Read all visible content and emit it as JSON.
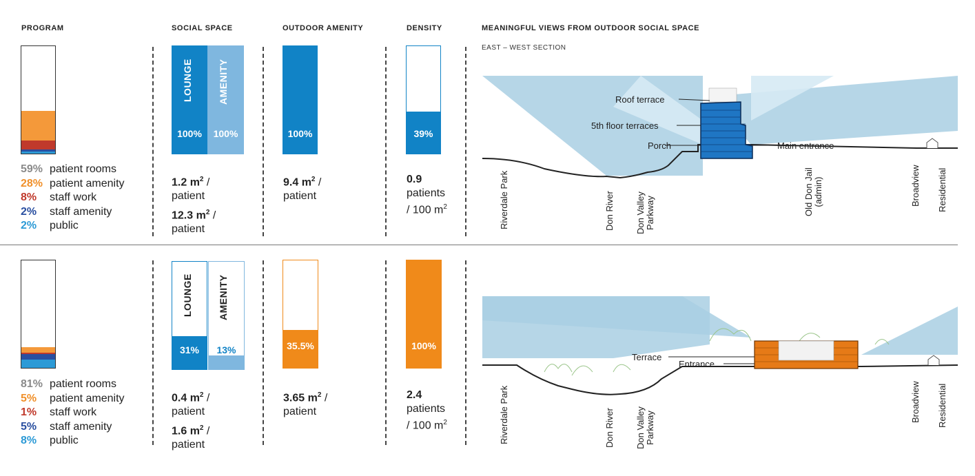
{
  "headers": {
    "program": "PROGRAM",
    "social_space": "SOCIAL SPACE",
    "outdoor_amenity": "OUTDOOR AMENITY",
    "density": "DENSITY",
    "views": "MEANINGFUL VIEWS FROM OUTDOOR SOCIAL SPACE",
    "section_sub": "EAST – WEST SECTION"
  },
  "colors": {
    "blue": "#1183c6",
    "light_blue": "#7fb7df",
    "orange": "#f08a1a",
    "light_orange": "#f4a33a",
    "red": "#c0392b",
    "dark_blue": "#2a4fa0",
    "cyan": "#2c9ad6",
    "sky": "#bcdbeb"
  },
  "top": {
    "program_list": [
      {
        "pct": "59%",
        "label": "patient rooms",
        "color": "#8a8a8a"
      },
      {
        "pct": "28%",
        "label": "patient amenity",
        "color": "#f0902a"
      },
      {
        "pct": "8%",
        "label": "staff work",
        "color": "#c0392b"
      },
      {
        "pct": "2%",
        "label": "staff amenity",
        "color": "#2a4fa0"
      },
      {
        "pct": "2%",
        "label": "public",
        "color": "#2c9ad6"
      }
    ],
    "program_fractions": {
      "patient_rooms": 0.59,
      "patient_amenity": 0.28,
      "staff_work": 0.08,
      "staff_amenity": 0.02,
      "public": 0.02
    },
    "social": {
      "lounge_label": "LOUNGE",
      "amenity_label": "AMENITY",
      "lounge_pct": "100%",
      "amenity_pct": "100%",
      "lounge_fill": 1.0,
      "amenity_fill": 1.0,
      "metric1_value": "1.2 m",
      "metric1_sup": "2",
      "metric1_unit": " /",
      "metric1_line2": "patient",
      "metric2_value": "12.3 m",
      "metric2_sup": "2",
      "metric2_unit": " /",
      "metric2_line2": "patient"
    },
    "outdoor": {
      "pct": "100%",
      "fill": 1.0,
      "value": "9.4 m",
      "sup": "2",
      "unit": " /",
      "line2": "patient"
    },
    "density": {
      "pct": "39%",
      "fill": 0.39,
      "value": "0.9",
      "line2": "patients",
      "line3": "/ 100 m",
      "sup": "2"
    },
    "section_labels": {
      "roof_terrace": "Roof terrace",
      "fifth_floor": "5th floor terraces",
      "porch": "Porch",
      "main_entrance": "Main entrance",
      "riverdale": "Riverdale Park",
      "don_river": "Don River",
      "dvp_1": "Don Valley",
      "dvp_2": "Parkway",
      "jail_1": "Old Don Jail",
      "jail_2": "(admin)",
      "broadview": "Broadview",
      "residential": "Residential"
    }
  },
  "bottom": {
    "program_list": [
      {
        "pct": "81%",
        "label": "patient rooms",
        "color": "#8a8a8a"
      },
      {
        "pct": "5%",
        "label": "patient amenity",
        "color": "#f0902a"
      },
      {
        "pct": "1%",
        "label": "staff work",
        "color": "#c0392b"
      },
      {
        "pct": "5%",
        "label": "staff amenity",
        "color": "#2a4fa0"
      },
      {
        "pct": "8%",
        "label": "public",
        "color": "#2c9ad6"
      }
    ],
    "program_fractions": {
      "patient_rooms": 0.81,
      "patient_amenity": 0.05,
      "staff_work": 0.01,
      "staff_amenity": 0.05,
      "public": 0.08
    },
    "social": {
      "lounge_label": "LOUNGE",
      "amenity_label": "AMENITY",
      "lounge_pct": "31%",
      "amenity_pct": "13%",
      "lounge_fill": 0.31,
      "amenity_fill": 0.13,
      "metric1_value": "0.4 m",
      "metric1_sup": "2",
      "metric1_unit": " /",
      "metric1_line2": "patient",
      "metric2_value": "1.6 m",
      "metric2_sup": "2",
      "metric2_unit": " /",
      "metric2_line2": "patient"
    },
    "outdoor": {
      "pct": "35.5%",
      "fill": 0.355,
      "value": "3.65 m",
      "sup": "2",
      "unit": " /",
      "line2": "patient"
    },
    "density": {
      "pct": "100%",
      "fill": 1.0,
      "value": "2.4",
      "line2": "patients",
      "line3": "/ 100 m",
      "sup": "2"
    },
    "section_labels": {
      "terrace": "Terrace",
      "entrance": "Entrance",
      "riverdale": "Riverdale Park",
      "don_river": "Don River",
      "dvp_1": "Don Valley",
      "dvp_2": "Parkway",
      "broadview": "Broadview",
      "residential": "Residential"
    }
  }
}
